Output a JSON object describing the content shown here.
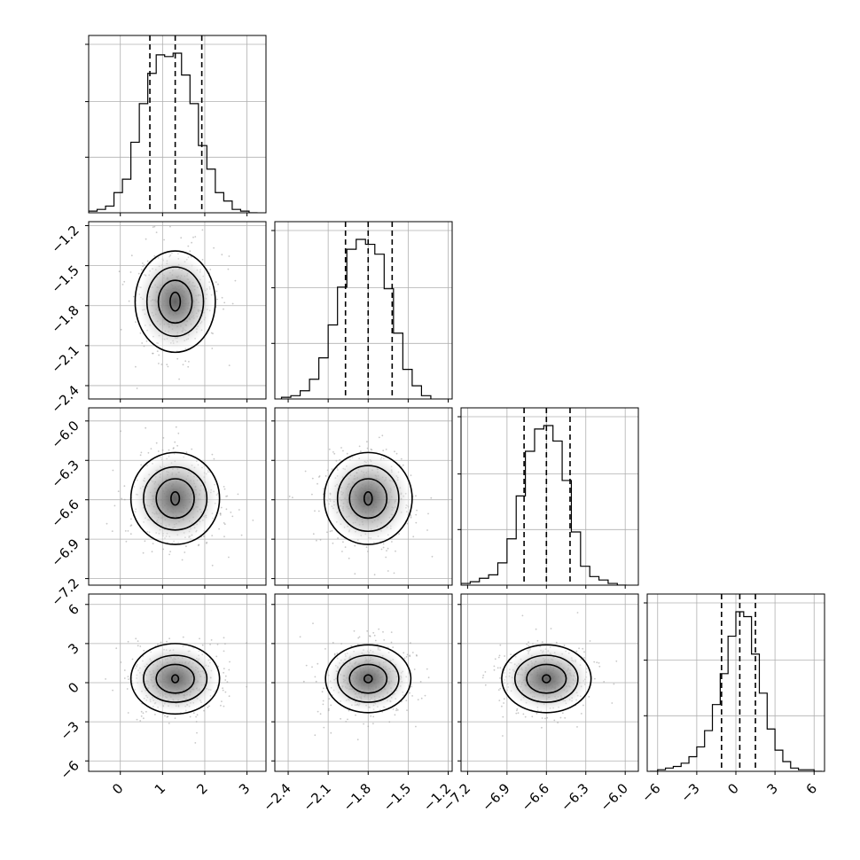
{
  "chart_data": {
    "type": "corner",
    "parameters": [
      {
        "lim": [
          -0.75,
          3.45
        ],
        "ticks": [
          0,
          1,
          2,
          3
        ],
        "tick_labels": [
          "0",
          "1",
          "2",
          "3"
        ],
        "quantiles": [
          0.7,
          1.3,
          1.93
        ],
        "histogram": {
          "bin_edges": [
            -0.75,
            -0.55,
            -0.35,
            -0.15,
            0.05,
            0.25,
            0.45,
            0.65,
            0.85,
            1.05,
            1.25,
            1.45,
            1.65,
            1.85,
            2.05,
            2.25,
            2.45,
            2.65,
            2.85,
            3.05,
            3.25
          ],
          "counts": [
            1,
            2,
            4,
            12,
            20,
            42,
            65,
            83,
            94,
            93,
            95,
            82,
            65,
            40,
            26,
            12,
            7,
            2,
            1,
            0
          ]
        }
      },
      {
        "lim": [
          -2.5,
          -1.17
        ],
        "ticks": [
          -2.4,
          -2.1,
          -1.8,
          -1.5,
          -1.2
        ],
        "tick_labels": [
          "−2.4",
          "−2.1",
          "−1.8",
          "−1.5",
          "−1.2"
        ],
        "quantiles": [
          -1.97,
          -1.8,
          -1.62
        ],
        "histogram": {
          "bin_edges": [
            -2.45,
            -2.38,
            -2.31,
            -2.24,
            -2.17,
            -2.1,
            -2.03,
            -1.96,
            -1.89,
            -1.82,
            -1.75,
            -1.68,
            -1.61,
            -1.54,
            -1.47,
            -1.4,
            -1.33
          ],
          "counts": [
            1,
            2,
            5,
            12,
            25,
            45,
            68,
            91,
            97,
            94,
            88,
            67,
            40,
            18,
            8,
            2
          ]
        }
      },
      {
        "lim": [
          -7.25,
          -5.9
        ],
        "ticks": [
          -7.2,
          -6.9,
          -6.6,
          -6.3,
          -6.0
        ],
        "tick_labels": [
          "−7.2",
          "−6.9",
          "−6.6",
          "−6.3",
          "−6.0"
        ],
        "quantiles": [
          -6.77,
          -6.6,
          -6.42
        ],
        "histogram": {
          "bin_edges": [
            -7.25,
            -7.18,
            -7.11,
            -7.04,
            -6.97,
            -6.9,
            -6.83,
            -6.76,
            -6.69,
            -6.62,
            -6.55,
            -6.48,
            -6.41,
            -6.34,
            -6.27,
            -6.2,
            -6.13,
            -6.06,
            -5.99
          ],
          "counts": [
            1,
            2,
            4,
            6,
            13,
            27,
            52,
            78,
            91,
            93,
            84,
            61,
            31,
            11,
            5,
            3,
            1,
            0
          ]
        }
      },
      {
        "lim": [
          -6.8,
          6.8
        ],
        "ticks": [
          -6,
          -3,
          0,
          3,
          6
        ],
        "tick_labels": [
          "−6",
          "−3",
          "0",
          "3",
          "6"
        ],
        "quantiles": [
          -1.1,
          0.3,
          1.5
        ],
        "histogram": {
          "bin_edges": [
            -6.6,
            -6.0,
            -5.4,
            -4.8,
            -4.2,
            -3.6,
            -3.0,
            -2.4,
            -1.8,
            -1.2,
            -0.6,
            0.0,
            0.6,
            1.2,
            1.8,
            2.4,
            3.0,
            3.6,
            4.2,
            4.8,
            5.4,
            6.0,
            6.6
          ],
          "counts": [
            0,
            1,
            2,
            3,
            5,
            9,
            15,
            25,
            41,
            60,
            83,
            98,
            95,
            72,
            48,
            26,
            13,
            6,
            2,
            1,
            1,
            0
          ]
        }
      }
    ],
    "contour_levels": {
      "pair_10": {
        "center": [
          1.3,
          -1.77
        ],
        "radii": [
          [
            0.95,
            0.38
          ],
          [
            0.67,
            0.26
          ],
          [
            0.4,
            0.16
          ],
          [
            0.12,
            0.07
          ]
        ]
      },
      "pair_20": {
        "center": [
          1.3,
          -6.59
        ],
        "radii": [
          [
            1.05,
            0.35
          ],
          [
            0.75,
            0.24
          ],
          [
            0.45,
            0.15
          ],
          [
            0.1,
            0.05
          ]
        ]
      },
      "pair_21": {
        "center": [
          -1.8,
          -6.59
        ],
        "radii": [
          [
            0.33,
            0.35
          ],
          [
            0.23,
            0.25
          ],
          [
            0.14,
            0.15
          ],
          [
            0.03,
            0.05
          ]
        ]
      },
      "pair_30": {
        "center": [
          1.3,
          0.3
        ],
        "radii": [
          [
            1.05,
            2.7
          ],
          [
            0.75,
            1.8
          ],
          [
            0.45,
            1.1
          ],
          [
            0.08,
            0.3
          ]
        ]
      },
      "pair_31": {
        "center": [
          -1.8,
          0.3
        ],
        "radii": [
          [
            0.32,
            2.6
          ],
          [
            0.23,
            1.8
          ],
          [
            0.14,
            1.1
          ],
          [
            0.03,
            0.3
          ]
        ]
      },
      "pair_32": {
        "center": [
          -6.6,
          0.3
        ],
        "radii": [
          [
            0.34,
            2.6
          ],
          [
            0.24,
            1.8
          ],
          [
            0.15,
            1.1
          ],
          [
            0.03,
            0.3
          ]
        ]
      }
    },
    "grid": true,
    "sample_color": "#9a9a9a",
    "contour_color": "#000000"
  }
}
